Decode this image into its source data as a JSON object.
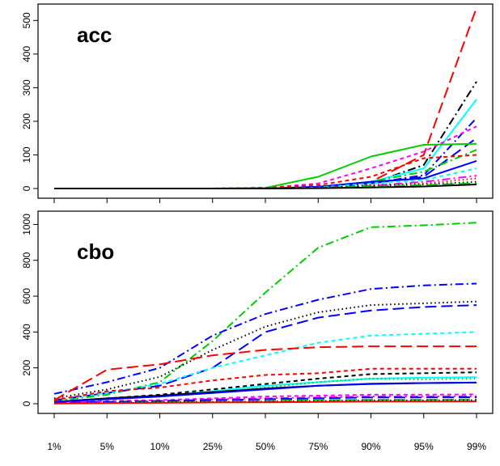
{
  "chart_data": [
    {
      "type": "line",
      "title": "",
      "panel_label": "acc",
      "xlabel": "",
      "ylabel": "",
      "x_categories": [
        "1%",
        "5%",
        "10%",
        "25%",
        "50%",
        "75%",
        "90%",
        "95%",
        "99%"
      ],
      "ylim": [
        0,
        520
      ],
      "yticks": [
        0,
        100,
        200,
        300,
        400,
        500
      ],
      "grid": false,
      "series": [
        {
          "color": "#ff0000",
          "dash": "long",
          "values": [
            0,
            0,
            0,
            0,
            0,
            5,
            20,
            100,
            538
          ]
        },
        {
          "color": "#000000",
          "dash": "dashdot",
          "values": [
            0,
            0,
            0,
            0,
            0,
            5,
            15,
            70,
            318
          ]
        },
        {
          "color": "#00ffff",
          "dash": "solid",
          "values": [
            0,
            0,
            0,
            0,
            0,
            5,
            20,
            60,
            265
          ]
        },
        {
          "color": "#0000ff",
          "dash": "dashdot",
          "values": [
            0,
            0,
            0,
            0,
            0,
            5,
            15,
            40,
            210
          ]
        },
        {
          "color": "#ff00ff",
          "dash": "dashed",
          "values": [
            0,
            0,
            0,
            0,
            2,
            15,
            60,
            110,
            185
          ]
        },
        {
          "color": "#0000ff",
          "dash": "long",
          "values": [
            0,
            0,
            0,
            0,
            0,
            5,
            15,
            35,
            150
          ]
        },
        {
          "color": "#00cd00",
          "dash": "solid",
          "values": [
            0,
            0,
            0,
            0,
            2,
            35,
            95,
            130,
            133
          ]
        },
        {
          "color": "#00cd00",
          "dash": "dashdot",
          "values": [
            0,
            0,
            0,
            0,
            0,
            5,
            20,
            50,
            115
          ]
        },
        {
          "color": "#ff0000",
          "dash": "dashed",
          "values": [
            0,
            0,
            0,
            0,
            2,
            10,
            35,
            90,
            100
          ]
        },
        {
          "color": "#0000ff",
          "dash": "solid",
          "values": [
            0,
            0,
            0,
            0,
            0,
            5,
            20,
            30,
            82
          ]
        },
        {
          "color": "#00ffff",
          "dash": "dashed",
          "values": [
            0,
            0,
            0,
            0,
            0,
            3,
            15,
            25,
            60
          ]
        },
        {
          "color": "#ff00ff",
          "dash": "dashdot",
          "values": [
            0,
            0,
            0,
            0,
            0,
            2,
            8,
            20,
            38
          ]
        },
        {
          "color": "#ff0000",
          "dash": "dotted",
          "values": [
            0,
            0,
            0,
            0,
            0,
            2,
            10,
            15,
            30
          ]
        },
        {
          "color": "#000000",
          "dash": "dotted",
          "values": [
            0,
            0,
            0,
            0,
            0,
            2,
            8,
            12,
            20
          ]
        },
        {
          "color": "#00cd00",
          "dash": "long",
          "values": [
            0,
            0,
            0,
            0,
            0,
            2,
            6,
            10,
            16
          ]
        },
        {
          "color": "#000000",
          "dash": "solid",
          "values": [
            0,
            0,
            0,
            0,
            0,
            1,
            3,
            6,
            12
          ]
        }
      ]
    },
    {
      "type": "line",
      "title": "",
      "panel_label": "cbo",
      "xlabel": "",
      "ylabel": "",
      "x_categories": [
        "1%",
        "5%",
        "10%",
        "25%",
        "50%",
        "75%",
        "90%",
        "95%",
        "99%"
      ],
      "x_tick_labels": [
        "1%",
        "5%",
        "10%",
        "25%",
        "50%",
        "75%",
        "90%",
        "95%",
        "99%"
      ],
      "ylim": [
        0,
        1020
      ],
      "yticks": [
        0,
        200,
        400,
        600,
        800,
        1000
      ],
      "grid": false,
      "series": [
        {
          "color": "#00cd00",
          "dash": "dashdot",
          "values": [
            15,
            50,
            120,
            350,
            620,
            870,
            985,
            995,
            1010
          ]
        },
        {
          "color": "#0000ff",
          "dash": "dashdot",
          "values": [
            55,
            120,
            200,
            380,
            500,
            580,
            640,
            660,
            670
          ]
        },
        {
          "color": "#000000",
          "dash": "dotted",
          "values": [
            30,
            80,
            150,
            300,
            430,
            510,
            550,
            560,
            570
          ]
        },
        {
          "color": "#0000ff",
          "dash": "long",
          "values": [
            20,
            60,
            100,
            200,
            400,
            480,
            520,
            540,
            550
          ]
        },
        {
          "color": "#00ffff",
          "dash": "dashed",
          "values": [
            20,
            60,
            110,
            200,
            270,
            340,
            380,
            390,
            400
          ]
        },
        {
          "color": "#ff0000",
          "dash": "long",
          "values": [
            20,
            190,
            220,
            270,
            300,
            315,
            320,
            320,
            320
          ]
        },
        {
          "color": "#ff0000",
          "dash": "dashed",
          "values": [
            20,
            70,
            90,
            130,
            160,
            170,
            195,
            195,
            195
          ]
        },
        {
          "color": "#000000",
          "dash": "dashed",
          "values": [
            10,
            30,
            50,
            80,
            110,
            140,
            165,
            170,
            175
          ]
        },
        {
          "color": "#00ffff",
          "dash": "solid",
          "values": [
            10,
            30,
            40,
            70,
            100,
            120,
            140,
            145,
            148
          ]
        },
        {
          "color": "#00cd00",
          "dash": "dotted",
          "values": [
            10,
            25,
            40,
            60,
            90,
            120,
            140,
            135,
            140
          ]
        },
        {
          "color": "#000000",
          "dash": "solid",
          "values": [
            10,
            30,
            45,
            65,
            85,
            100,
            110,
            115,
            118
          ]
        },
        {
          "color": "#0000ff",
          "dash": "solid",
          "values": [
            10,
            25,
            40,
            60,
            80,
            100,
            112,
            115,
            118
          ]
        },
        {
          "color": "#ff00ff",
          "dash": "dashed",
          "values": [
            5,
            15,
            20,
            30,
            40,
            45,
            50,
            50,
            52
          ]
        },
        {
          "color": "#ff00ff",
          "dash": "dashdot",
          "values": [
            5,
            10,
            15,
            25,
            30,
            35,
            40,
            40,
            42
          ]
        },
        {
          "color": "#0000ff",
          "dash": "long",
          "values": [
            5,
            10,
            15,
            20,
            25,
            30,
            35,
            35,
            36
          ]
        },
        {
          "color": "#00cd00",
          "dash": "long",
          "values": [
            2,
            5,
            8,
            10,
            15,
            20,
            22,
            22,
            24
          ]
        },
        {
          "color": "#000000",
          "dash": "dotted",
          "values": [
            2,
            5,
            8,
            10,
            12,
            15,
            18,
            18,
            20
          ]
        },
        {
          "color": "#ff0000",
          "dash": "solid",
          "values": [
            1,
            3,
            5,
            7,
            8,
            10,
            12,
            12,
            13
          ]
        }
      ]
    }
  ]
}
